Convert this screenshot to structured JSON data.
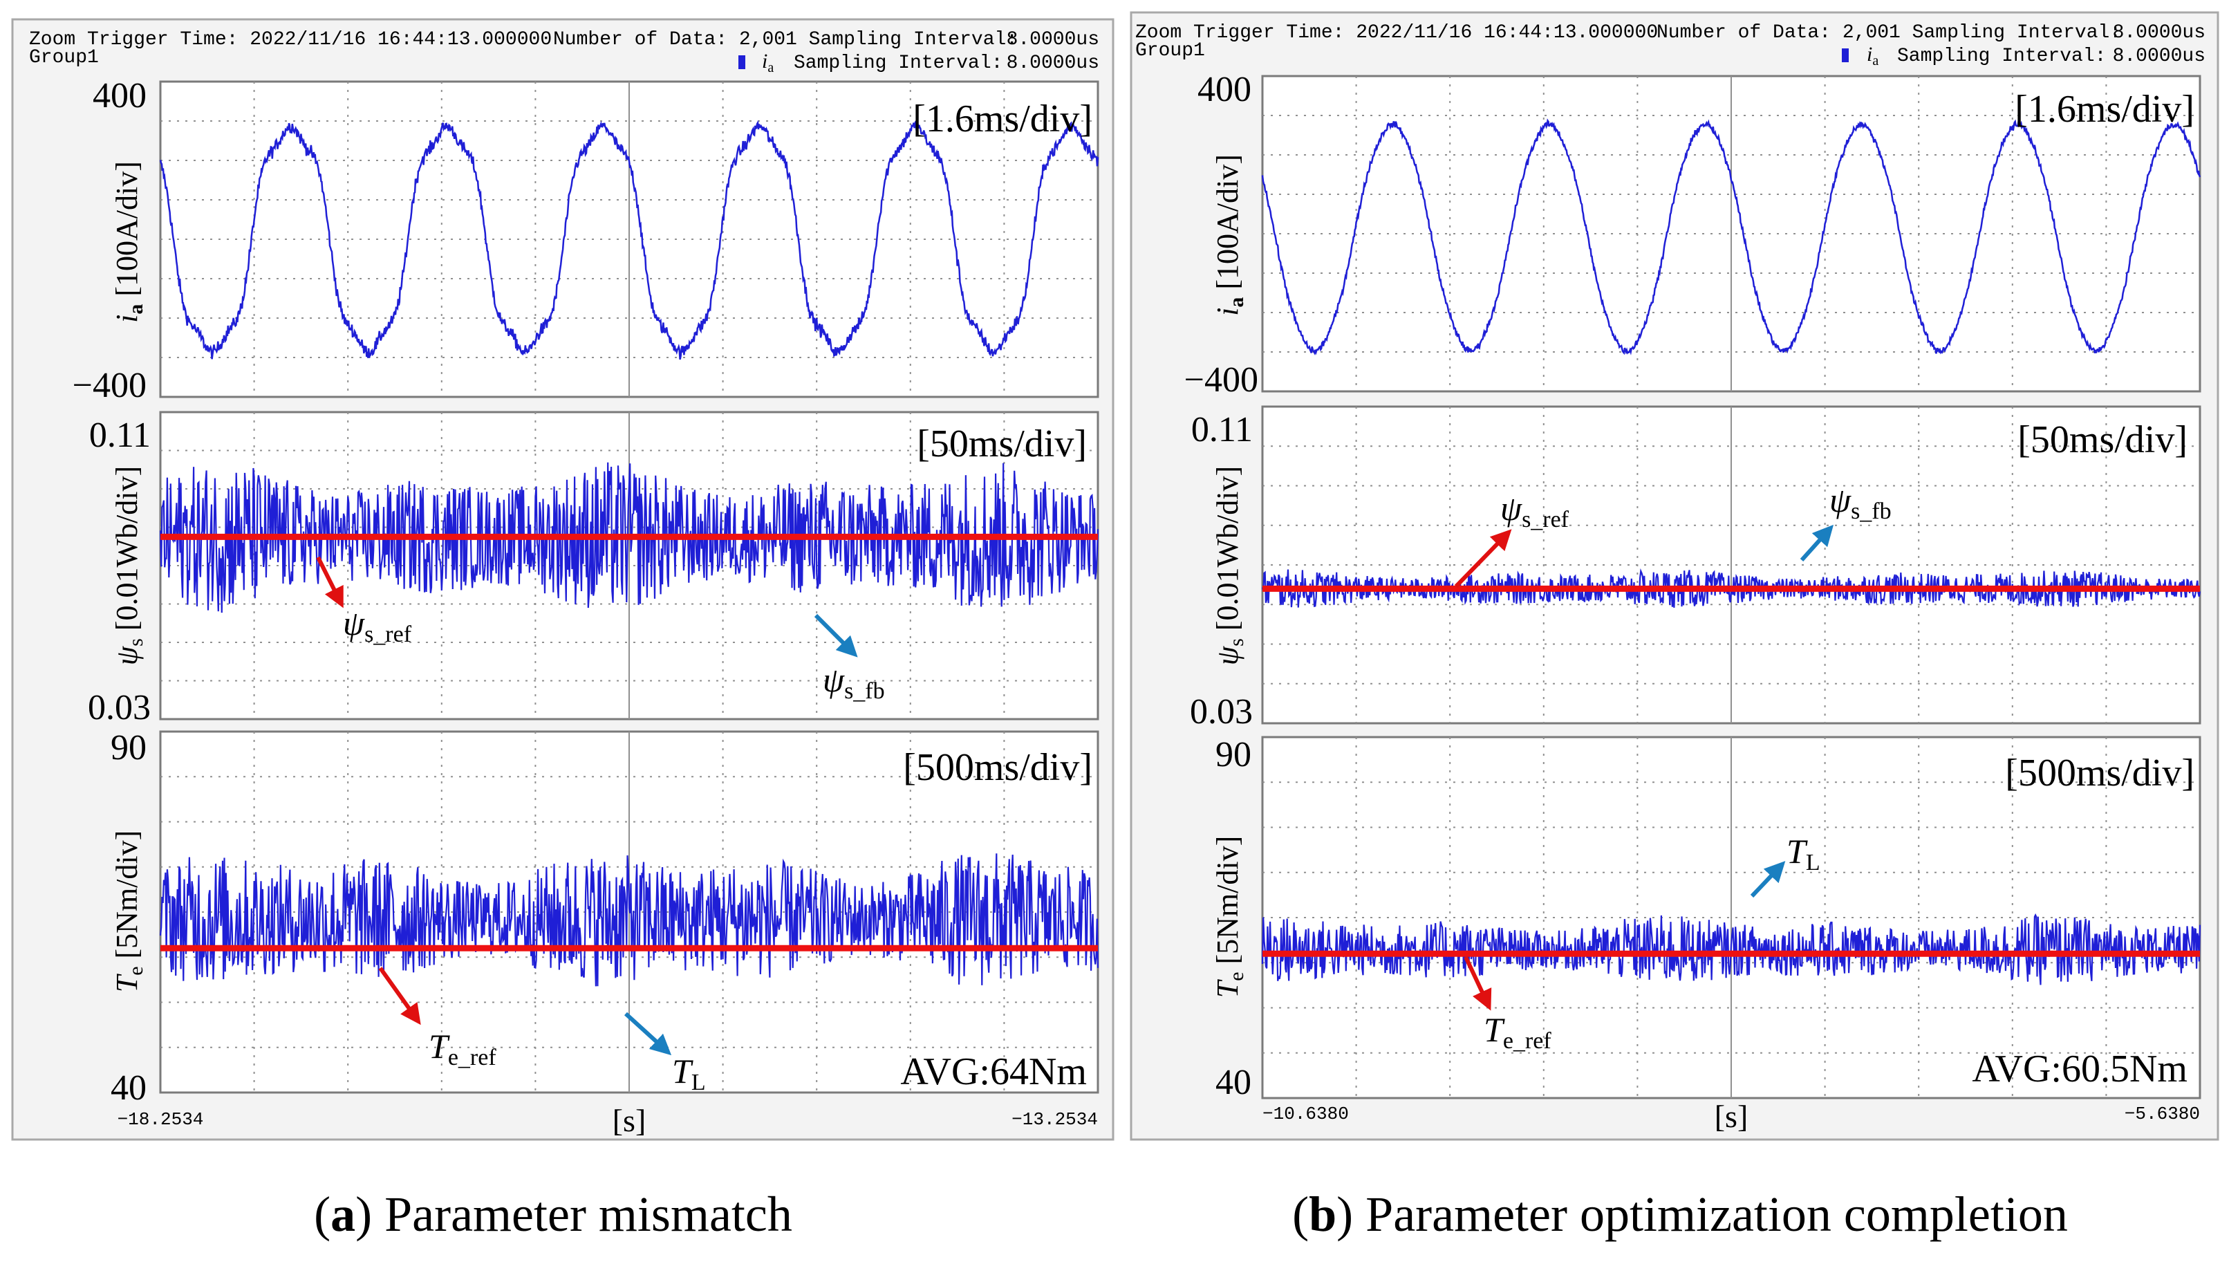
{
  "colors": {
    "signal": "#1f1fd6",
    "reference": "#ee1111",
    "arrow_red": "#e01010",
    "arrow_blue": "#1a7fc0",
    "grid": "#909090",
    "frame": "#7a7a7a",
    "panel_border": "#a8a8a8",
    "header_bg": "#f3f3f3"
  },
  "caption": {
    "a_letter": "a",
    "a_text": " Parameter mismatch",
    "b_letter": "b",
    "b_text": " Parameter optimization completion"
  },
  "chart_data": [
    {
      "id": "a",
      "type": "line",
      "header": {
        "trigger": "Zoom Trigger Time: 2022/11/16 16:44:13.000000",
        "group": "Group1",
        "num_data": "Number of Data: 2,001 Sampling Interval:",
        "interval": "8.0000us",
        "legend_label": "Sampling Interval:",
        "legend_interval": "8.0000us"
      },
      "xlabel": "[s]",
      "x_start_label": "−18.2534",
      "x_end_label": "−13.2534",
      "x_start": -18.2534,
      "x_end": -13.2534,
      "panels": [
        {
          "name": "current",
          "ylabel_symbol": "i",
          "ylabel_sub": "a",
          "ylabel_unit": " [100A/div]",
          "ylim": [
            -400,
            400
          ],
          "ytick_top": "400",
          "ytick_bottom": "−400",
          "timebase": "[1.6ms/div]",
          "series": [
            {
              "name": "i_a",
              "form": "sine",
              "cycles": 6,
              "phase_deg": 150,
              "amplitude": 300,
              "dc": 0,
              "noise": 28,
              "distortion": 0.22
            }
          ]
        },
        {
          "name": "flux",
          "ylabel_symbol": "ψ",
          "ylabel_sub": "s",
          "ylabel_unit": " [0.01Wb/div]",
          "ylim": [
            0.03,
            0.11
          ],
          "ytick_top": "0.11",
          "ytick_bottom": "0.03",
          "timebase": "[50ms/div]",
          "series": [
            {
              "name": "ψs_fb",
              "form": "band",
              "center": 0.0775,
              "spread": 0.02
            },
            {
              "name": "ψs_ref",
              "form": "line",
              "value": 0.0775
            }
          ],
          "annotations": [
            {
              "label": "ψ",
              "sub": "s_ref",
              "color": "red"
            },
            {
              "label": "ψ",
              "sub": "s_fb",
              "color": "blue"
            }
          ]
        },
        {
          "name": "torque",
          "ylabel_symbol": "T",
          "ylabel_sub": "e",
          "ylabel_unit": " [5Nm/div]",
          "ylim": [
            40,
            90
          ],
          "ytick_top": "90",
          "ytick_bottom": "40",
          "timebase": "[500ms/div]",
          "avg_text": "AVG:64Nm",
          "series": [
            {
              "name": "T_L",
              "form": "band",
              "center": 64,
              "spread": 10
            },
            {
              "name": "T_e_ref",
              "form": "line",
              "value": 60
            }
          ],
          "annotations": [
            {
              "label": "T",
              "sub": "e_ref",
              "color": "red"
            },
            {
              "label": "T",
              "sub": "L",
              "color": "blue"
            }
          ]
        }
      ]
    },
    {
      "id": "b",
      "type": "line",
      "header": {
        "trigger": "Zoom Trigger Time: 2022/11/16 16:44:13.000000",
        "group": "Group1",
        "num_data": "Number of Data: 2,001 Sampling Interval:",
        "interval": "8.0000us",
        "legend_label": "Sampling Interval:",
        "legend_interval": "8.0000us"
      },
      "xlabel": "[s]",
      "x_start_label": "−10.6380",
      "x_end_label": "−5.6380",
      "x_start": -10.638,
      "x_end": -5.638,
      "panels": [
        {
          "name": "current",
          "ylabel_symbol": "i",
          "ylabel_sub": "a",
          "ylabel_unit": " [100A/div]",
          "ylim": [
            -400,
            400
          ],
          "ytick_top": "400",
          "ytick_bottom": "−400",
          "timebase": "[1.6ms/div]",
          "series": [
            {
              "name": "i_a",
              "form": "sine",
              "cycles": 6,
              "phase_deg": 150,
              "amplitude": 290,
              "dc": -10,
              "noise": 14,
              "distortion": 0.04
            }
          ]
        },
        {
          "name": "flux",
          "ylabel_symbol": "ψ",
          "ylabel_sub": "s",
          "ylabel_unit": " [0.01Wb/div]",
          "ylim": [
            0.03,
            0.11
          ],
          "ytick_top": "0.11",
          "ytick_bottom": "0.03",
          "timebase": "[50ms/div]",
          "series": [
            {
              "name": "ψs_fb",
              "form": "band",
              "center": 0.064,
              "spread": 0.005
            },
            {
              "name": "ψs_ref",
              "form": "line",
              "value": 0.064
            }
          ],
          "annotations": [
            {
              "label": "ψ",
              "sub": "s_ref",
              "color": "red"
            },
            {
              "label": "ψ",
              "sub": "s_fb",
              "color": "blue"
            }
          ]
        },
        {
          "name": "torque",
          "ylabel_symbol": "T",
          "ylabel_sub": "e",
          "ylabel_unit": " [5Nm/div]",
          "ylim": [
            40,
            90
          ],
          "ytick_top": "90",
          "ytick_bottom": "40",
          "timebase": "[500ms/div]",
          "avg_text": "AVG:60.5Nm",
          "series": [
            {
              "name": "T_L",
              "form": "band",
              "center": 60.5,
              "spread": 5
            },
            {
              "name": "T_e_ref",
              "form": "line",
              "value": 60
            }
          ],
          "annotations": [
            {
              "label": "T",
              "sub": "L",
              "color": "blue"
            },
            {
              "label": "T",
              "sub": "e_ref",
              "color": "red"
            }
          ]
        }
      ]
    }
  ]
}
